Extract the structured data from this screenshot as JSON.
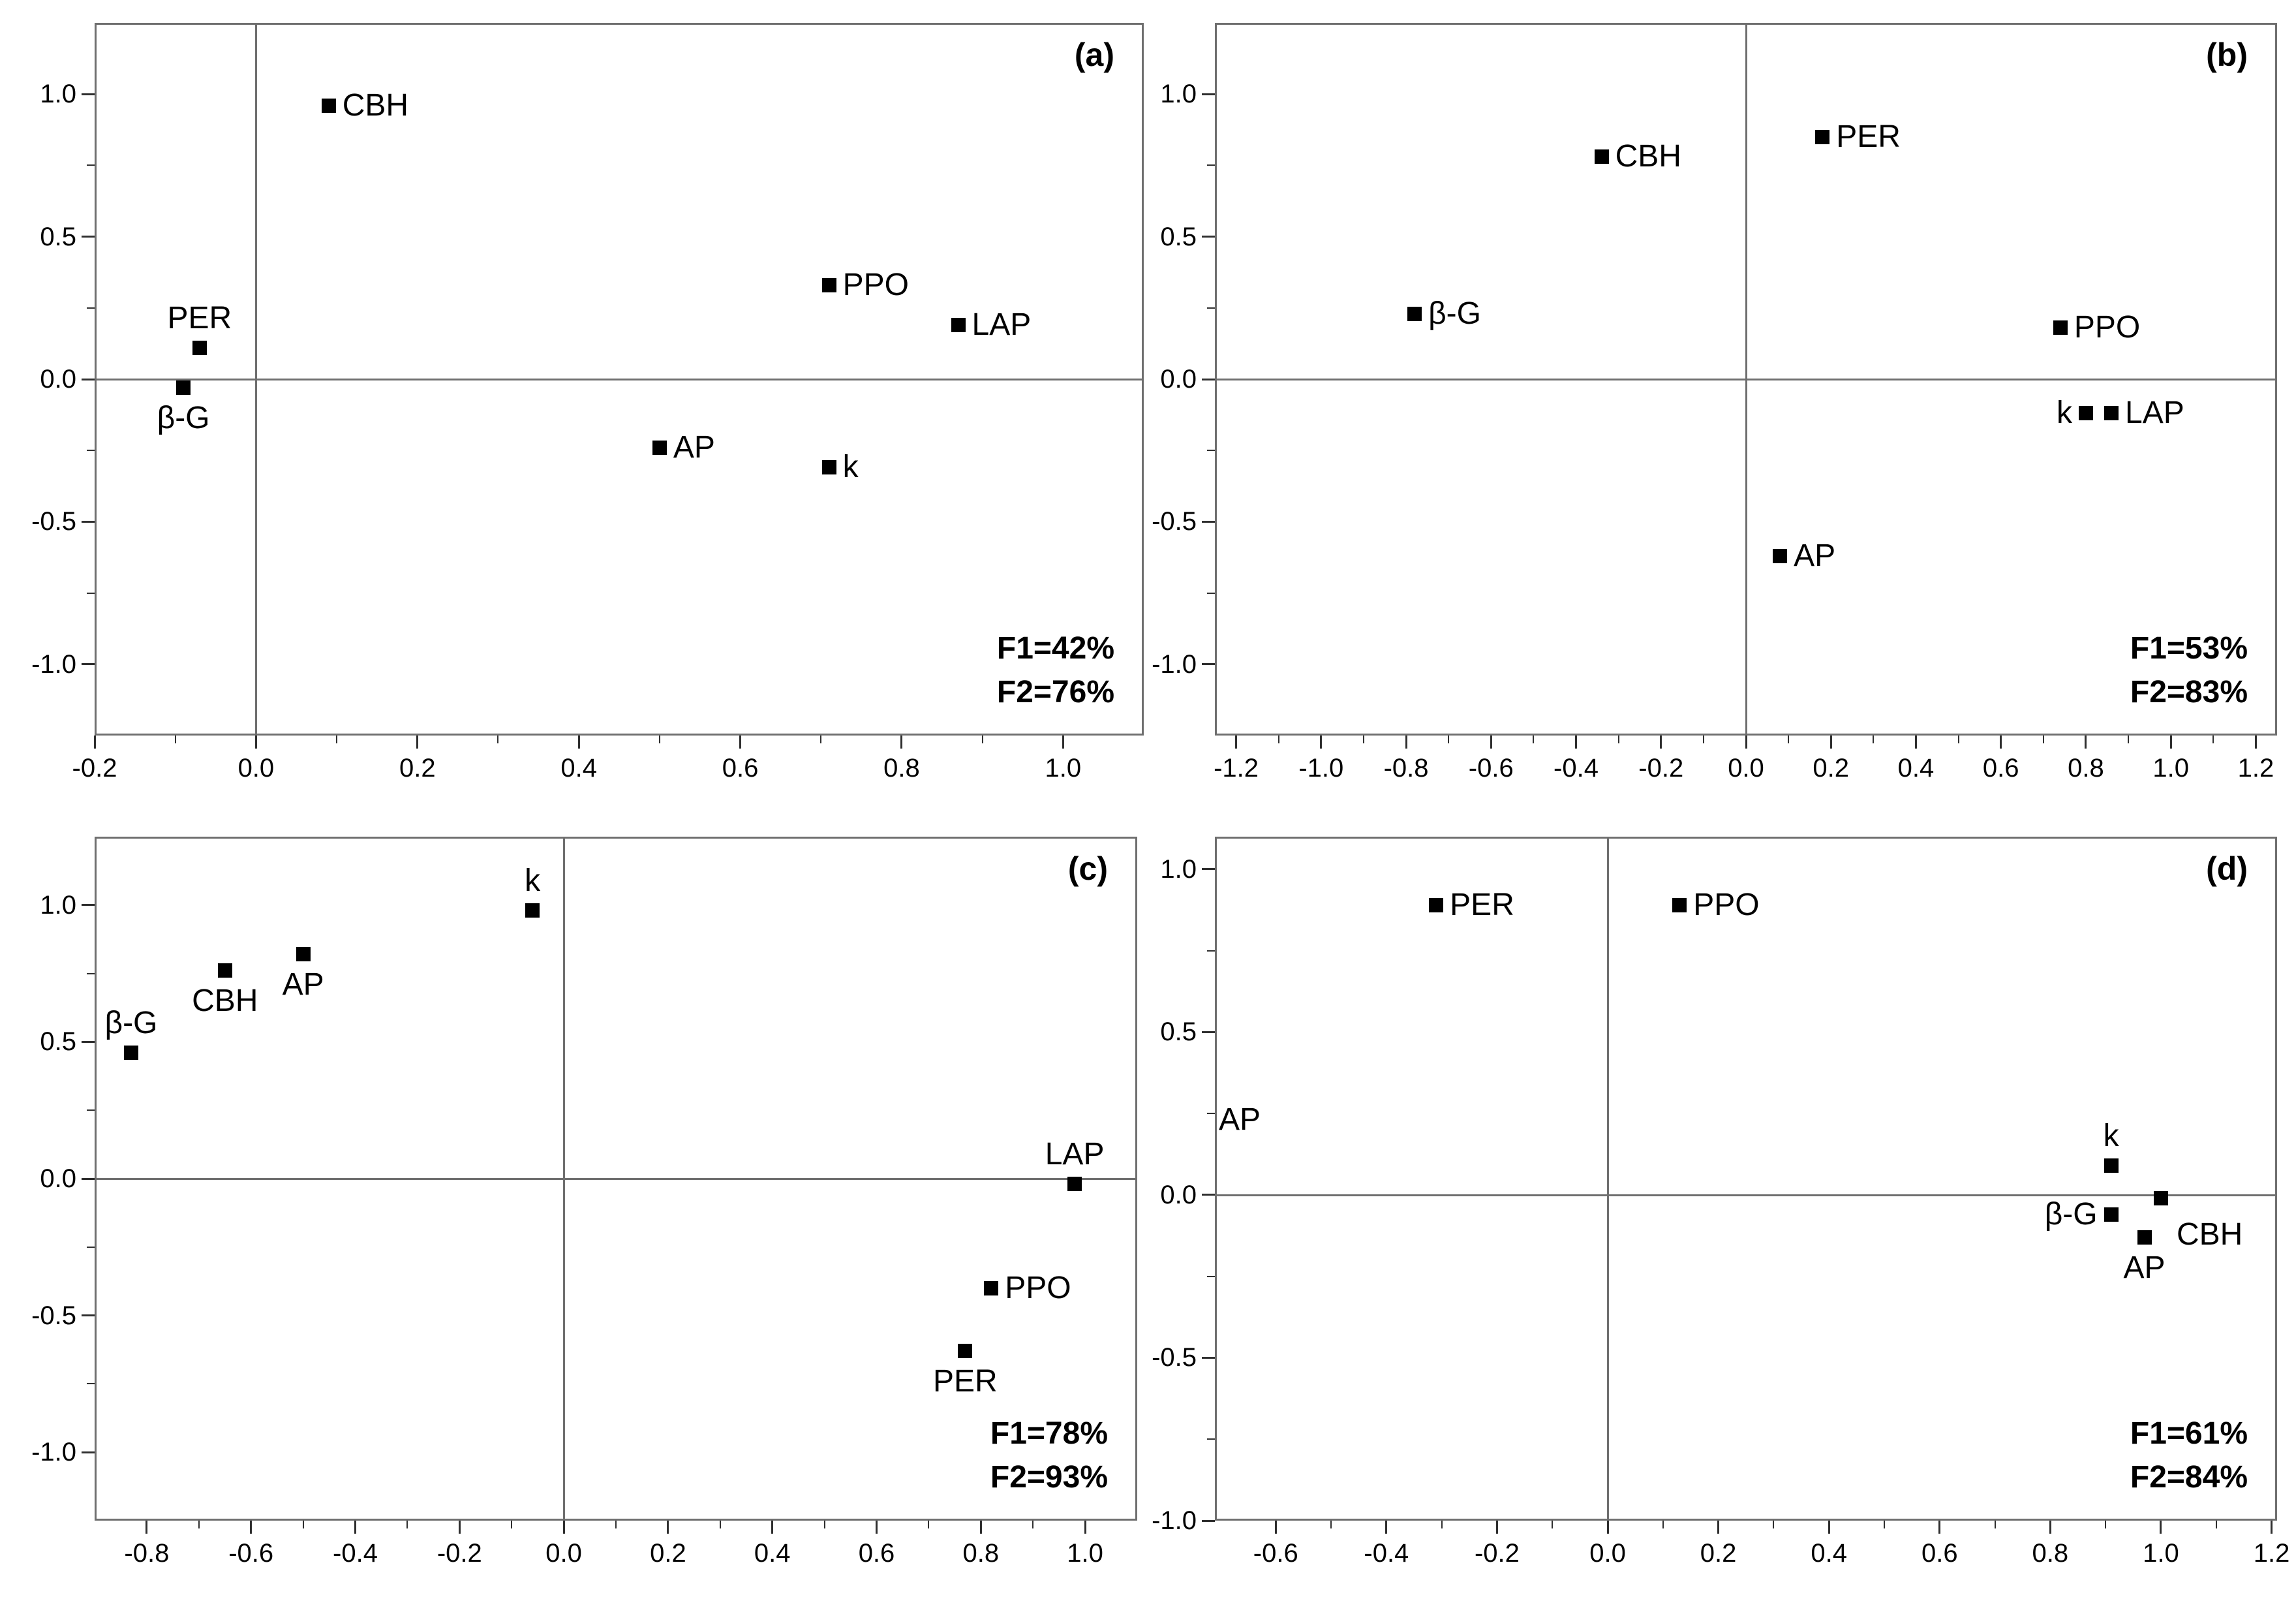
{
  "figure": {
    "background": "#ffffff",
    "marker_color": "#000000",
    "axis_line_color": "#6f6f6f",
    "text_color": "#000000",
    "marker_shape": "filled-square"
  },
  "chart_data": [
    {
      "type": "scatter",
      "panel_label": "(a)",
      "xlim": [
        -0.2,
        1.1
      ],
      "ylim": [
        -1.25,
        1.25
      ],
      "grid": false,
      "x_ticks": {
        "labels": [
          "-0.2",
          "0.0",
          "0.2",
          "0.4",
          "0.6",
          "0.8",
          "1.0"
        ],
        "values": [
          -0.2,
          0,
          0.2,
          0.4,
          0.6,
          0.8,
          1
        ],
        "minor_step": 0.1
      },
      "y_ticks": {
        "labels": [
          "1.0",
          "0.5",
          "0.0",
          "-0.5",
          "-1.0"
        ],
        "values": [
          1,
          0.5,
          0,
          -0.5,
          -1
        ],
        "minor_step": 0.25
      },
      "points": [
        {
          "label": "CBH",
          "x": 0.09,
          "y": 0.96,
          "label_pos": "right"
        },
        {
          "label": "PER",
          "x": -0.07,
          "y": 0.11,
          "label_pos": "above"
        },
        {
          "label": "β-G",
          "x": -0.09,
          "y": -0.03,
          "label_pos": "below"
        },
        {
          "label": "PPO",
          "x": 0.71,
          "y": 0.33,
          "label_pos": "right"
        },
        {
          "label": "LAP",
          "x": 0.87,
          "y": 0.19,
          "label_pos": "right"
        },
        {
          "label": "AP",
          "x": 0.5,
          "y": -0.24,
          "label_pos": "right"
        },
        {
          "label": "k",
          "x": 0.71,
          "y": -0.31,
          "label_pos": "right"
        }
      ],
      "annotations": [],
      "stats": [
        "F1=42%",
        "F2=76%"
      ]
    },
    {
      "type": "scatter",
      "panel_label": "(b)",
      "xlim": [
        -1.25,
        1.25
      ],
      "ylim": [
        -1.25,
        1.25
      ],
      "grid": false,
      "x_ticks": {
        "labels": [
          "-1.2",
          "-1.0",
          "-0.8",
          "-0.6",
          "-0.4",
          "-0.2",
          "0.0",
          "0.2",
          "0.4",
          "0.6",
          "0.8",
          "1.0",
          "1.2"
        ],
        "values": [
          -1.2,
          -1,
          -0.8,
          -0.6,
          -0.4,
          -0.2,
          0,
          0.2,
          0.4,
          0.6,
          0.8,
          1,
          1.2
        ],
        "minor_step": 0.1
      },
      "y_ticks": {
        "labels": [
          "1.0",
          "0.5",
          "0.0",
          "-0.5",
          "-1.0"
        ],
        "values": [
          1,
          0.5,
          0,
          -0.5,
          -1
        ],
        "minor_step": 0.25
      },
      "points": [
        {
          "label": "PER",
          "x": 0.18,
          "y": 0.85,
          "label_pos": "right"
        },
        {
          "label": "CBH",
          "x": -0.34,
          "y": 0.78,
          "label_pos": "right"
        },
        {
          "label": "β-G",
          "x": -0.78,
          "y": 0.23,
          "label_pos": "right"
        },
        {
          "label": "PPO",
          "x": 0.74,
          "y": 0.18,
          "label_pos": "right"
        },
        {
          "label": "k",
          "x": 0.8,
          "y": -0.12,
          "label_pos": "left"
        },
        {
          "label": "LAP",
          "x": 0.86,
          "y": -0.12,
          "label_pos": "right"
        },
        {
          "label": "AP",
          "x": 0.08,
          "y": -0.62,
          "label_pos": "right"
        }
      ],
      "annotations": [],
      "stats": [
        "F1=53%",
        "F2=83%"
      ]
    },
    {
      "type": "scatter",
      "panel_label": "(c)",
      "xlim": [
        -0.9,
        1.1
      ],
      "ylim": [
        -1.25,
        1.25
      ],
      "grid": false,
      "x_ticks": {
        "labels": [
          "-0.8",
          "-0.6",
          "-0.4",
          "-0.2",
          "0.0",
          "0.2",
          "0.4",
          "0.6",
          "0.8",
          "1.0"
        ],
        "values": [
          -0.8,
          -0.6,
          -0.4,
          -0.2,
          0,
          0.2,
          0.4,
          0.6,
          0.8,
          1
        ],
        "minor_step": 0.1
      },
      "y_ticks": {
        "labels": [
          "1.0",
          "0.5",
          "0.0",
          "-0.5",
          "-1.0"
        ],
        "values": [
          1,
          0.5,
          0,
          -0.5,
          -1
        ],
        "minor_step": 0.25
      },
      "points": [
        {
          "label": "k",
          "x": -0.06,
          "y": 0.98,
          "label_pos": "above"
        },
        {
          "label": "AP",
          "x": -0.5,
          "y": 0.82,
          "label_pos": "below"
        },
        {
          "label": "CBH",
          "x": -0.65,
          "y": 0.76,
          "label_pos": "below"
        },
        {
          "label": "β-G",
          "x": -0.83,
          "y": 0.46,
          "label_pos": "above"
        },
        {
          "label": "LAP",
          "x": 0.98,
          "y": -0.02,
          "label_pos": "above"
        },
        {
          "label": "PPO",
          "x": 0.82,
          "y": -0.4,
          "label_pos": "right"
        },
        {
          "label": "PER",
          "x": 0.77,
          "y": -0.63,
          "label_pos": "below"
        }
      ],
      "annotations": [],
      "stats": [
        "F1=78%",
        "F2=93%"
      ]
    },
    {
      "type": "scatter",
      "panel_label": "(d)",
      "xlim": [
        -0.71,
        1.21
      ],
      "ylim": [
        -1.0,
        1.1
      ],
      "grid": false,
      "x_ticks": {
        "labels": [
          "-0.6",
          "-0.4",
          "-0.2",
          "0.0",
          "0.2",
          "0.4",
          "0.6",
          "0.8",
          "1.0",
          "1.2"
        ],
        "values": [
          -0.6,
          -0.4,
          -0.2,
          0,
          0.2,
          0.4,
          0.6,
          0.8,
          1,
          1.2
        ],
        "minor_step": 0.1
      },
      "y_ticks": {
        "labels": [
          "1.0",
          "0.5",
          "0.0",
          "-0.5",
          "-1.0"
        ],
        "values": [
          1,
          0.5,
          0,
          -0.5,
          -1
        ],
        "minor_step": 0.25
      },
      "points": [
        {
          "label": "PER",
          "x": -0.31,
          "y": 0.89,
          "label_pos": "right"
        },
        {
          "label": "PPO",
          "x": 0.13,
          "y": 0.89,
          "label_pos": "right"
        },
        {
          "label": "k",
          "x": 0.91,
          "y": 0.09,
          "label_pos": "above"
        },
        {
          "label": "CBH",
          "x": 1.0,
          "y": -0.01,
          "label_pos": "below-right"
        },
        {
          "label": "β-G",
          "x": 0.91,
          "y": -0.06,
          "label_pos": "left"
        },
        {
          "label": "AP",
          "x": 0.97,
          "y": -0.13,
          "label_pos": "below"
        }
      ],
      "annotations": [
        {
          "text": "AP",
          "y": 0.23,
          "position": "left-edge"
        }
      ],
      "stats": [
        "F1=61%",
        "F2=84%"
      ]
    }
  ]
}
